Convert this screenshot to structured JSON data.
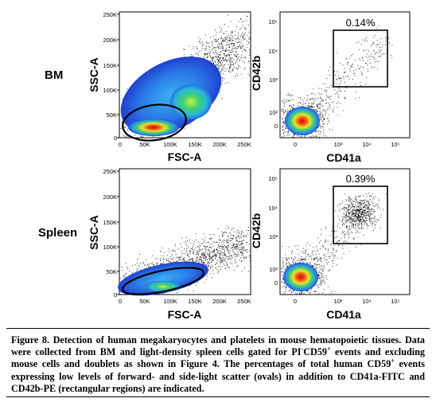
{
  "rows": [
    {
      "label": "BM",
      "gate_percent": "0.14%"
    },
    {
      "label": "Spleen",
      "gate_percent": "0.39%"
    }
  ],
  "scatter_axes": {
    "x_label": "FSC-A",
    "y_label": "SSC-A",
    "x_ticks": [
      "0",
      "50K",
      "100K",
      "150K",
      "200K",
      "250K"
    ],
    "y_ticks": [
      "0",
      "50K",
      "100K",
      "150K",
      "200K",
      "250K"
    ]
  },
  "marker_axes": {
    "x_label": "CD41a",
    "y_label": "CD42b",
    "x_ticks": [
      "0",
      "10³",
      "10⁴",
      "10⁵"
    ],
    "y_ticks": [
      "0",
      "10²",
      "10³",
      "10⁴",
      "10⁵"
    ]
  },
  "caption": {
    "title": "Figure 8. Detection of human megakaryocytes and platelets in mouse hematopoietic tissues.",
    "text_1": "Data were collected from BM and light-density spleen cells gated for PI",
    "sup_1": "-",
    "text_2": "CD59",
    "sup_2": "+",
    "text_3": "events and excluding mouse cells and doublets as shown in Figure 4. The percentages of total human CD59",
    "sup_3": "+",
    "text_4": "events expressing low levels of forward- and side-light scatter (ovals) in addition to CD41a-FITC and CD42b-PE (rectangular regions) are indicated."
  }
}
